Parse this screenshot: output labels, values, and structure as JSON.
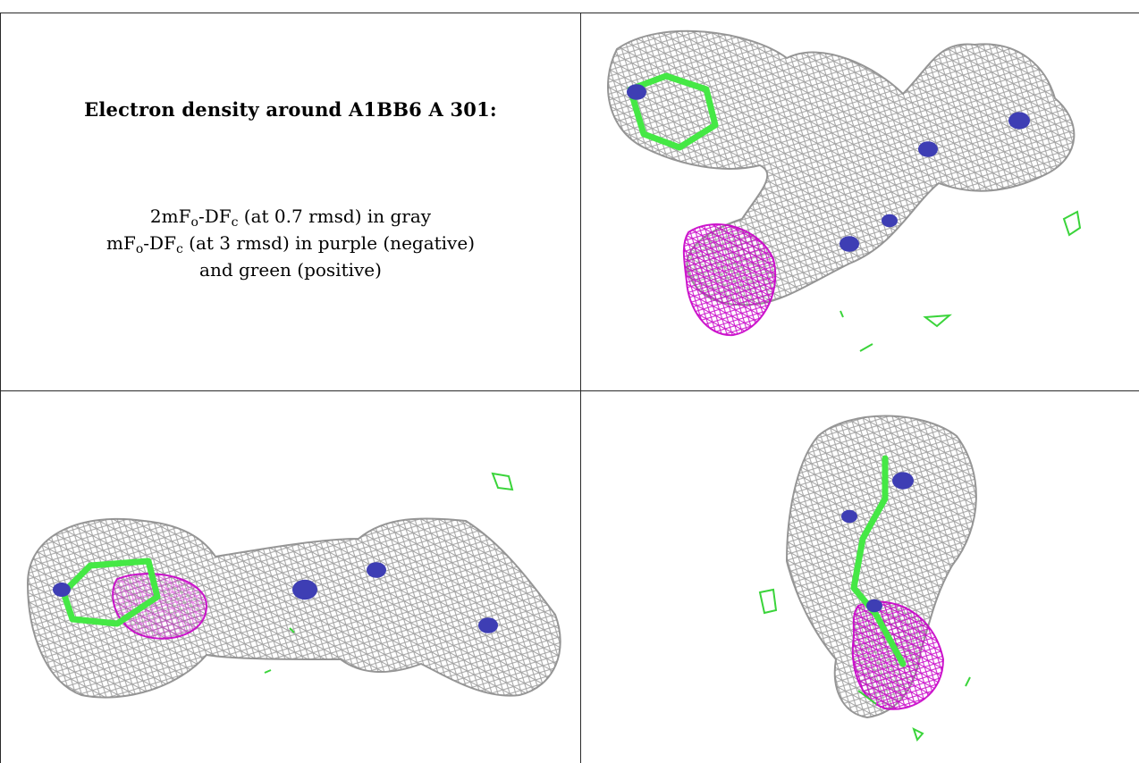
{
  "caption": {
    "title": "Electron density around A1BB6 A 301:",
    "line1": {
      "a": "2mF",
      "a_sub": "o",
      "b": "-DF",
      "b_sub": "c",
      "rest": " (at 0.7 rmsd) in gray"
    },
    "line2": {
      "a": "mF",
      "a_sub": "o",
      "b": "-DF",
      "b_sub": "c",
      "rest": " (at 3 rmsd) in purple (negative)"
    },
    "line3": "and green (positive)"
  },
  "colors": {
    "mesh_2fofc": "#8c8c8c",
    "diff_negative": "#c800c8",
    "diff_positive": "#3ad43a",
    "carbon_bonds": "#45e845",
    "nitrogen": "#3e3eb4",
    "grid_line": "#2a2a2a"
  },
  "views": [
    {
      "name": "view-top-right"
    },
    {
      "name": "view-bottom-left"
    },
    {
      "name": "view-bottom-right"
    }
  ]
}
